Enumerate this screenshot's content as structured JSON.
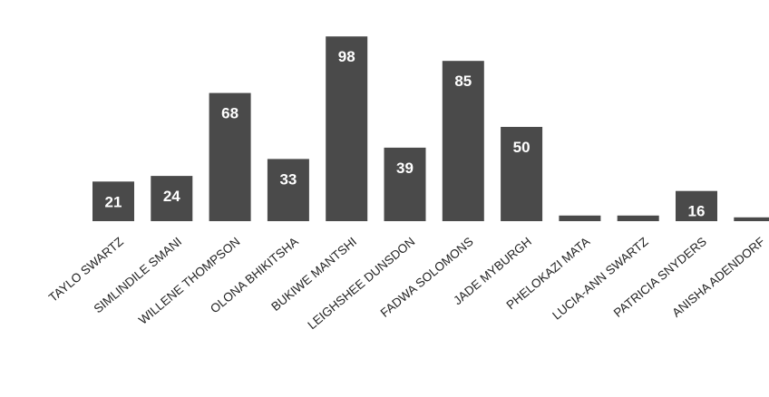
{
  "chart_data": {
    "type": "bar",
    "categories": [
      "TAYLO SWARTZ",
      "SIMLINDILE SMANI",
      "WILLENE THOMPSON",
      "OLONA BHIKITSHA",
      "BUKIWE MANTSHI",
      "LEIGHSHEE DUNSDON",
      "FADWA SOLOMONS",
      "JADE MYBURGH",
      "PHELOKAZI MATA",
      "LUCIA-ANN SWARTZ",
      "PATRICIA SNYDERS",
      "ANISHA ADENDORF"
    ],
    "values": [
      21,
      24,
      68,
      33,
      98,
      39,
      85,
      50,
      3,
      3,
      16,
      2
    ],
    "data_labels": [
      "21",
      "24",
      "68",
      "33",
      "98",
      "39",
      "85",
      "50",
      "",
      "",
      "16",
      ""
    ],
    "title": "",
    "xlabel": "",
    "ylabel": "",
    "ylim": [
      0,
      100
    ],
    "grid": false,
    "legend": "none",
    "colors": {
      "bar": "#4a4a4a",
      "label": "#ffffff",
      "text": "#222222",
      "background": "#ffffff"
    }
  }
}
